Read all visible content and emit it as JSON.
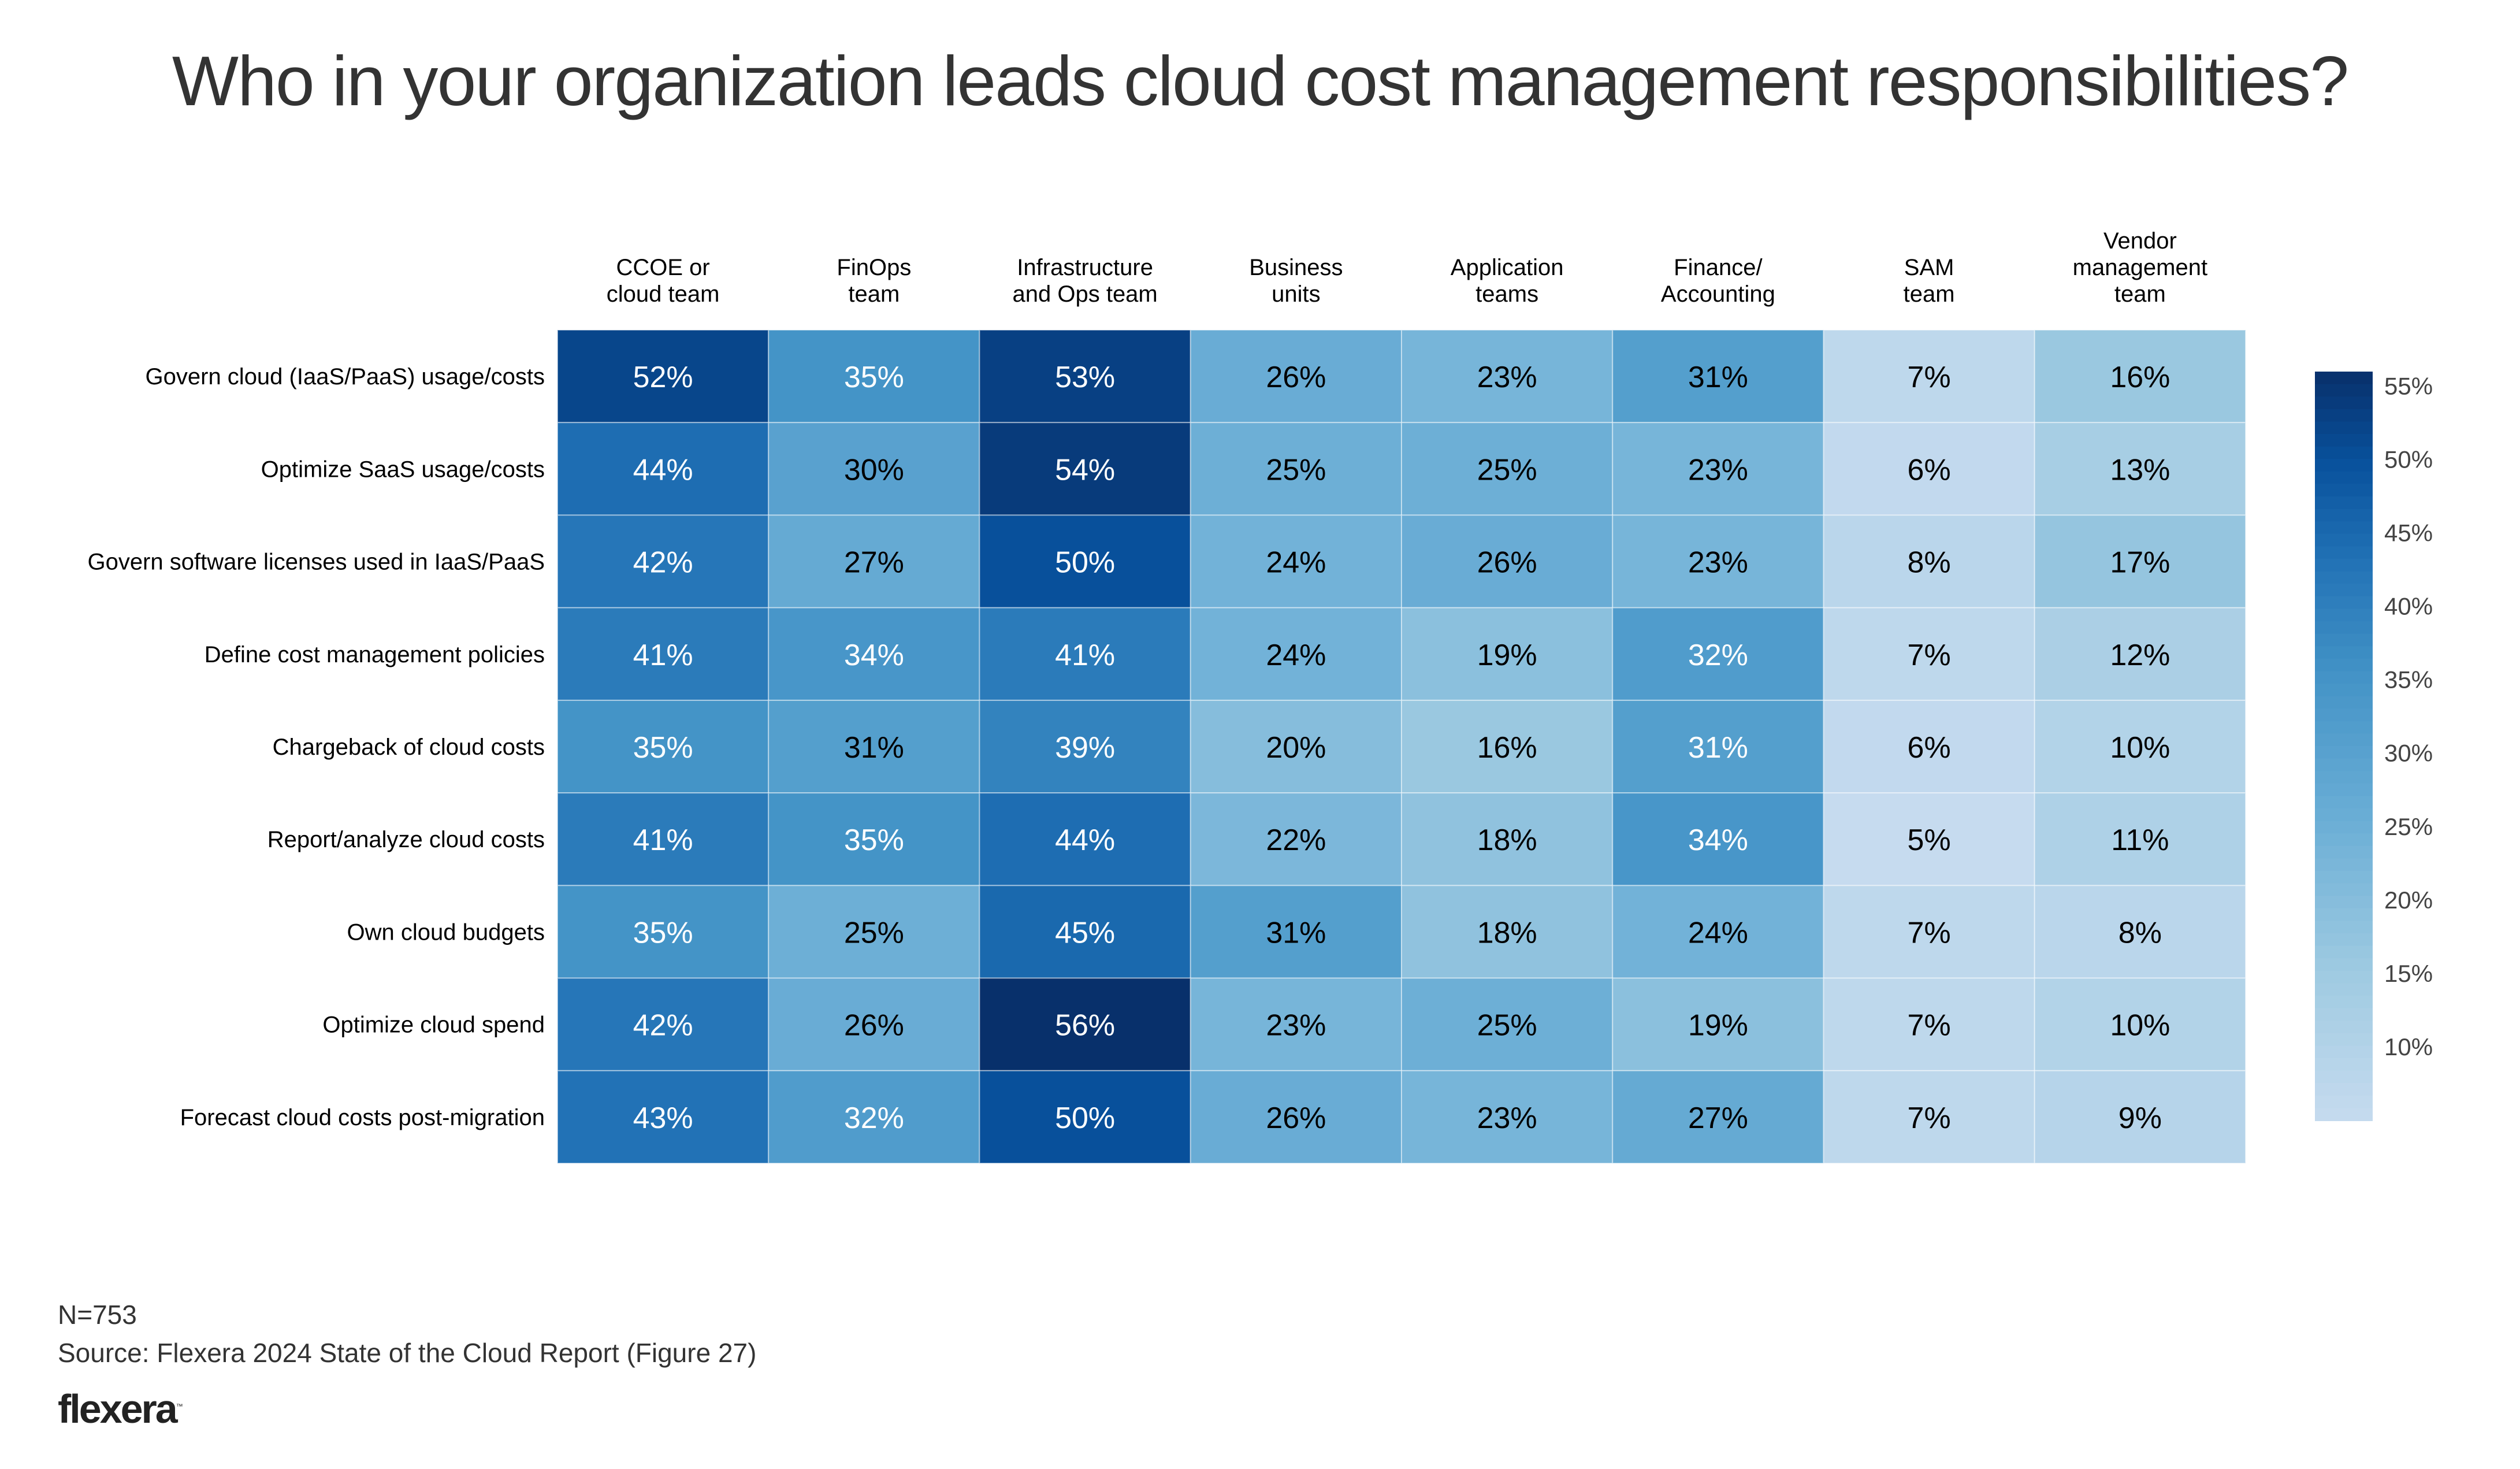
{
  "chart_data": {
    "type": "heatmap",
    "title": "Who in your organization leads cloud cost management responsibilities?",
    "columns": [
      [
        "CCOE or",
        "cloud team"
      ],
      [
        "FinOps",
        "team"
      ],
      [
        "Infrastructure",
        "and Ops team"
      ],
      [
        "Business",
        "units"
      ],
      [
        "Application",
        "teams"
      ],
      [
        "Finance/",
        "Accounting"
      ],
      [
        "SAM",
        "team"
      ],
      [
        "Vendor",
        "management",
        "team"
      ]
    ],
    "rows": [
      "Govern cloud (IaaS/PaaS) usage/costs",
      "Optimize SaaS usage/costs",
      "Govern software licenses used in IaaS/PaaS",
      "Define cost management policies",
      "Chargeback of cloud costs",
      "Report/analyze cloud costs",
      "Own cloud budgets",
      "Optimize cloud spend",
      "Forecast cloud costs post-migration"
    ],
    "values": [
      [
        52,
        35,
        53,
        26,
        23,
        31,
        7,
        16
      ],
      [
        44,
        30,
        54,
        25,
        25,
        23,
        6,
        13
      ],
      [
        42,
        27,
        50,
        24,
        26,
        23,
        8,
        17
      ],
      [
        41,
        34,
        41,
        24,
        19,
        32,
        7,
        12
      ],
      [
        35,
        31,
        39,
        20,
        16,
        31,
        6,
        10
      ],
      [
        41,
        35,
        44,
        22,
        18,
        34,
        5,
        11
      ],
      [
        35,
        25,
        45,
        31,
        18,
        24,
        7,
        8
      ],
      [
        42,
        26,
        56,
        23,
        25,
        19,
        7,
        10
      ],
      [
        43,
        32,
        50,
        26,
        23,
        27,
        7,
        9
      ]
    ],
    "light_text": [
      [
        true,
        true,
        true,
        false,
        false,
        false,
        false,
        false
      ],
      [
        true,
        false,
        true,
        false,
        false,
        false,
        false,
        false
      ],
      [
        true,
        false,
        true,
        false,
        false,
        false,
        false,
        false
      ],
      [
        true,
        true,
        true,
        false,
        false,
        true,
        false,
        false
      ],
      [
        true,
        false,
        true,
        false,
        false,
        true,
        false,
        false
      ],
      [
        true,
        true,
        true,
        false,
        false,
        true,
        false,
        false
      ],
      [
        true,
        false,
        true,
        false,
        false,
        false,
        false,
        false
      ],
      [
        true,
        false,
        true,
        false,
        false,
        false,
        false,
        false
      ],
      [
        true,
        true,
        true,
        false,
        false,
        false,
        false,
        false
      ]
    ],
    "value_format": "percent",
    "colorbar": {
      "ticks": [
        10,
        15,
        20,
        25,
        30,
        35,
        40,
        45,
        50,
        55
      ],
      "tick_labels": [
        "10%",
        "15%",
        "20%",
        "25%",
        "30%",
        "35%",
        "40%",
        "45%",
        "50%",
        "55%"
      ],
      "range": [
        5,
        56
      ],
      "colormap": "Blues",
      "placement": "right"
    },
    "colors": {
      "low": "#c6dbef",
      "high": "#08306b"
    }
  },
  "footer": {
    "n": "N=753",
    "source": "Source: Flexera 2024 State of the Cloud Report (Figure 27)",
    "logo": "flexera",
    "logo_mark": "™"
  }
}
